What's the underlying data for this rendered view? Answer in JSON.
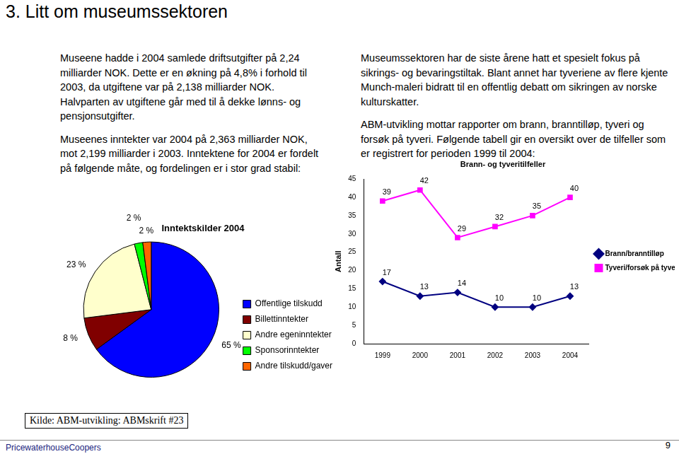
{
  "header": {
    "title": "3. Litt om museumssektoren"
  },
  "left_text": [
    "Museene hadde i 2004 samlede driftsutgifter på 2,24 milliarder NOK. Dette er en økning på 4,8% i forhold til 2003, da utgiftene var på 2,138 milliarder NOK. Halvparten av utgiftene går med til å dekke lønns- og pensjonsutgifter.",
    "Museenes inntekter var 2004 på 2,363 milliarder NOK, mot 2,199 milliarder i 2003. Inntektene for 2004 er fordelt på følgende måte, og fordelingen er i stor grad stabil:"
  ],
  "right_text": [
    "Museumssektoren har de siste årene hatt et spesielt fokus på sikrings- og bevaringstiltak. Blant annet har tyveriene av flere kjente Munch-maleri bidratt til en offentlig debatt om sikringen av norske kulturskatter.",
    "ABM-utvikling mottar rapporter om brann, branntilløp, tyveri og forsøk på tyveri. Følgende tabell gir en oversikt over de tilfeller som er registrert for perioden 1999 til 2004:"
  ],
  "source": "Kilde: ABM-utvikling: ABMskrift #23",
  "footer": {
    "company": "PricewaterhouseCoopers",
    "page": 9
  },
  "chart_data": [
    {
      "type": "pie",
      "title": "Inntektskilder 2004",
      "categories": [
        "Offentlige tilskudd",
        "Billettinntekter",
        "Andre egeninntekter",
        "Sponsorinntekter",
        "Andre tilskudd/gaver"
      ],
      "values": [
        65,
        8,
        23,
        2,
        2
      ],
      "value_labels": [
        "65 %",
        "8 %",
        "23 %",
        "2 %",
        "2 %"
      ],
      "colors": [
        "#0000ff",
        "#800000",
        "#ffffcc",
        "#00ff00",
        "#ff6600"
      ],
      "data_labels": true,
      "legend": "right"
    },
    {
      "type": "line",
      "title": "Brann- og tyveritilfeller",
      "categories": [
        "1999",
        "2000",
        "2001",
        "2002",
        "2003",
        "2004"
      ],
      "y_label": "Antall",
      "ylim": [
        0,
        45
      ],
      "yticks": [
        0,
        5,
        10,
        15,
        20,
        25,
        30,
        35,
        40,
        45
      ],
      "grid": false,
      "legend": "right",
      "data_labels": true,
      "series": [
        {
          "name": "Brann/branntilløp",
          "color": "#000080",
          "marker": "diamond",
          "values": [
            17,
            13,
            14,
            10,
            10,
            13
          ]
        },
        {
          "name": "Tyveri/forsøk på tyveri",
          "color": "#ff00ff",
          "marker": "square",
          "values": [
            39,
            42,
            29,
            32,
            35,
            40
          ]
        }
      ]
    }
  ]
}
